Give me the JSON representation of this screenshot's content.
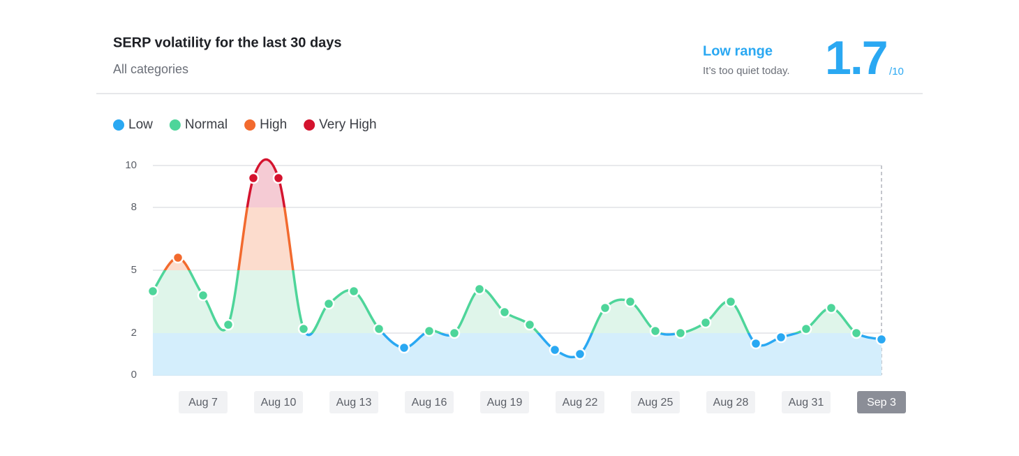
{
  "chart_data": {
    "type": "line",
    "title": "SERP volatility for the last 30 days",
    "subtitle": "All categories",
    "summary": {
      "label": "Low range",
      "note": "It’s too quiet today.",
      "value": 1.7,
      "scale": "/10"
    },
    "levels": [
      {
        "name": "Low",
        "color": "#2aa8f2",
        "fill": "#d4eefc",
        "from": 0
      },
      {
        "name": "Normal",
        "color": "#4ed59a",
        "fill": "#dff5ea",
        "from": 2
      },
      {
        "name": "High",
        "color": "#f26a2e",
        "fill": "#fcdccd",
        "from": 5
      },
      {
        "name": "Very High",
        "color": "#d4132e",
        "fill": "#f5cbd4",
        "from": 8
      }
    ],
    "categories": [
      null,
      null,
      "Aug 7",
      null,
      null,
      "Aug 10",
      null,
      null,
      "Aug 13",
      null,
      null,
      "Aug 16",
      null,
      null,
      "Aug 19",
      null,
      null,
      "Aug 22",
      null,
      null,
      "Aug 25",
      null,
      null,
      "Aug 28",
      null,
      null,
      "Aug 31",
      null,
      null,
      "Sep 3"
    ],
    "values": [
      4.0,
      5.6,
      3.8,
      2.4,
      9.4,
      9.4,
      2.2,
      3.4,
      4.0,
      2.2,
      1.3,
      2.1,
      2.0,
      4.1,
      3.0,
      2.4,
      1.2,
      1.0,
      3.2,
      3.5,
      2.1,
      2.0,
      2.5,
      3.5,
      1.5,
      1.8,
      2.2,
      3.2,
      2.0,
      1.7
    ],
    "ylim": [
      0,
      10
    ],
    "yticks": [
      0,
      2,
      5,
      8,
      10
    ],
    "grid": true
  }
}
